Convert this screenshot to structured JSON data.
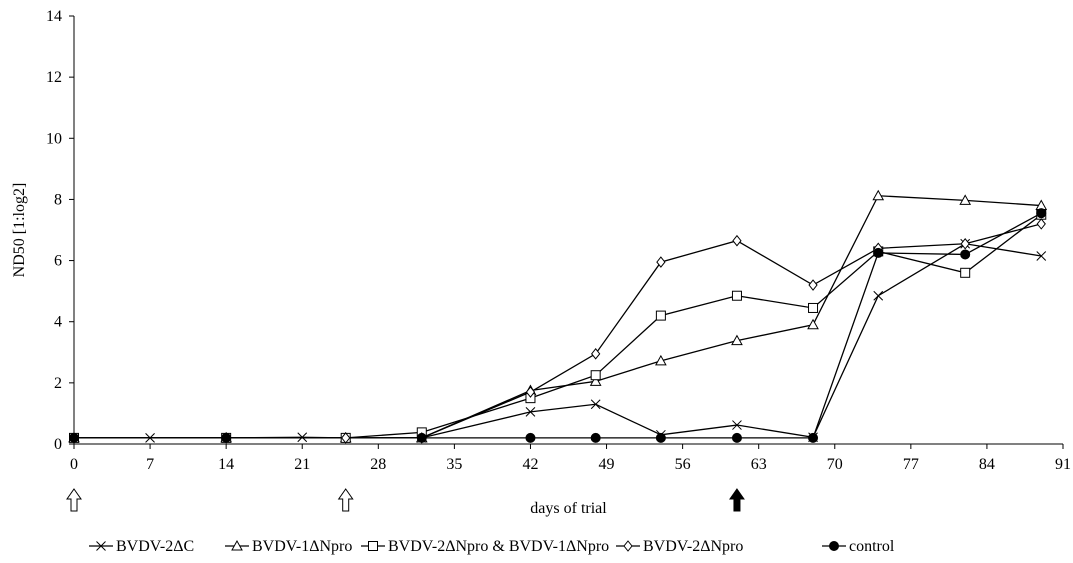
{
  "chart_data": {
    "type": "line",
    "title": "",
    "xlabel": "days of trial",
    "ylabel": "ND50 [1:log2]",
    "xlim": [
      0,
      91
    ],
    "ylim": [
      0,
      14
    ],
    "x_ticks": [
      0,
      7,
      14,
      21,
      28,
      35,
      42,
      49,
      56,
      63,
      70,
      77,
      84,
      91
    ],
    "y_ticks": [
      0,
      2,
      4,
      6,
      8,
      10,
      12,
      14
    ],
    "grid": false,
    "legend_position": "bottom",
    "series": [
      {
        "name": "BVDV-2ΔC",
        "marker": "x",
        "x": [
          0,
          7,
          14,
          21,
          25,
          32,
          42,
          48,
          54,
          61,
          68,
          74,
          82,
          89
        ],
        "y": [
          0.2,
          0.2,
          0.2,
          0.22,
          0.2,
          0.2,
          1.05,
          1.3,
          0.3,
          0.62,
          0.22,
          4.85,
          6.55,
          6.15
        ]
      },
      {
        "name": "BVDV-1ΔNpro",
        "marker": "triangle",
        "x": [
          0,
          14,
          25,
          32,
          42,
          48,
          54,
          61,
          68,
          74,
          82,
          89
        ],
        "y": [
          0.2,
          0.2,
          0.2,
          0.2,
          1.75,
          2.05,
          2.72,
          3.38,
          3.9,
          8.12,
          7.97,
          7.8
        ]
      },
      {
        "name": "BVDV-2ΔNpro & BVDV-1ΔNpro",
        "marker": "square",
        "x": [
          0,
          14,
          25,
          32,
          42,
          48,
          54,
          61,
          68,
          74,
          82,
          89
        ],
        "y": [
          0.2,
          0.2,
          0.2,
          0.38,
          1.5,
          2.25,
          4.2,
          4.85,
          4.45,
          6.3,
          5.6,
          7.5
        ]
      },
      {
        "name": "BVDV-2ΔNpro",
        "marker": "diamond",
        "x": [
          0,
          14,
          25,
          32,
          42,
          48,
          54,
          61,
          68,
          74,
          82,
          89
        ],
        "y": [
          0.2,
          0.2,
          0.2,
          0.2,
          1.7,
          2.95,
          5.95,
          6.65,
          5.2,
          6.4,
          6.55,
          7.2
        ]
      },
      {
        "name": "control",
        "marker": "filled-circle",
        "x": [
          0,
          14,
          32,
          42,
          48,
          54,
          61,
          68,
          74,
          82,
          89
        ],
        "y": [
          0.2,
          0.2,
          0.2,
          0.2,
          0.2,
          0.2,
          0.2,
          0.2,
          6.25,
          6.2,
          7.55
        ]
      }
    ],
    "annotations": [
      {
        "x": 0,
        "icon": "hollow-up-arrow"
      },
      {
        "x": 25,
        "icon": "hollow-up-arrow"
      },
      {
        "x": 61,
        "icon": "filled-up-arrow"
      }
    ]
  }
}
